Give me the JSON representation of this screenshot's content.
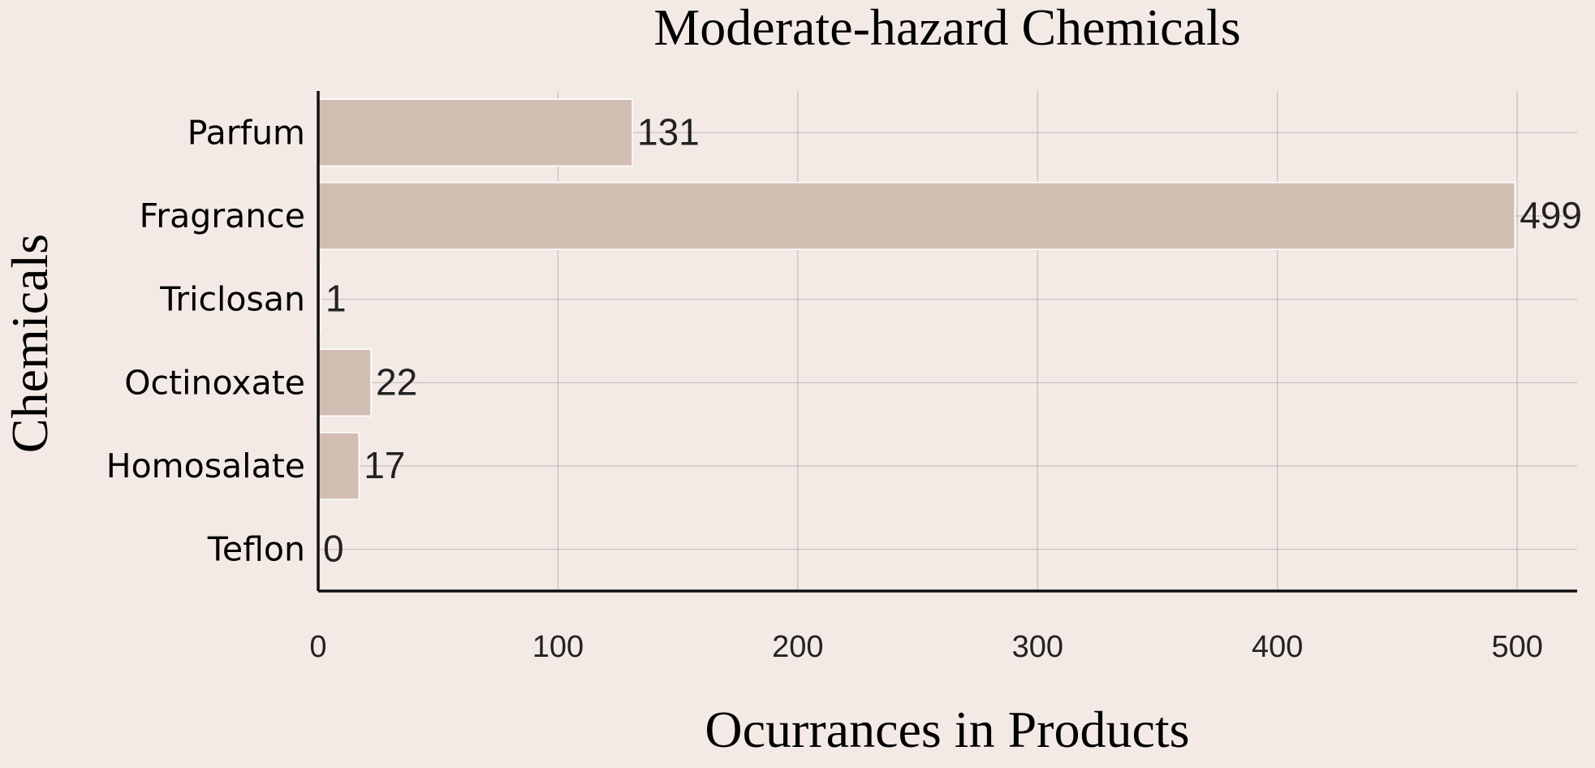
{
  "chart_data": {
    "type": "bar",
    "orientation": "horizontal",
    "title": "Moderate-hazard Chemicals",
    "xlabel": "Ocurrances in Products",
    "ylabel": "Chemicals",
    "categories": [
      "Parfum",
      "Fragrance",
      "Triclosan",
      "Octinoxate",
      "Homosalate",
      "Teflon"
    ],
    "values": [
      131,
      499,
      1,
      22,
      17,
      0
    ],
    "xlim": [
      0,
      525
    ],
    "xticks": [
      "0",
      "100",
      "200",
      "300",
      "400",
      "500"
    ],
    "grid": true,
    "show_data_labels": true,
    "colors": {
      "background": "#f3eae6",
      "bar": "#d2bdb3",
      "text": "#222222"
    }
  }
}
